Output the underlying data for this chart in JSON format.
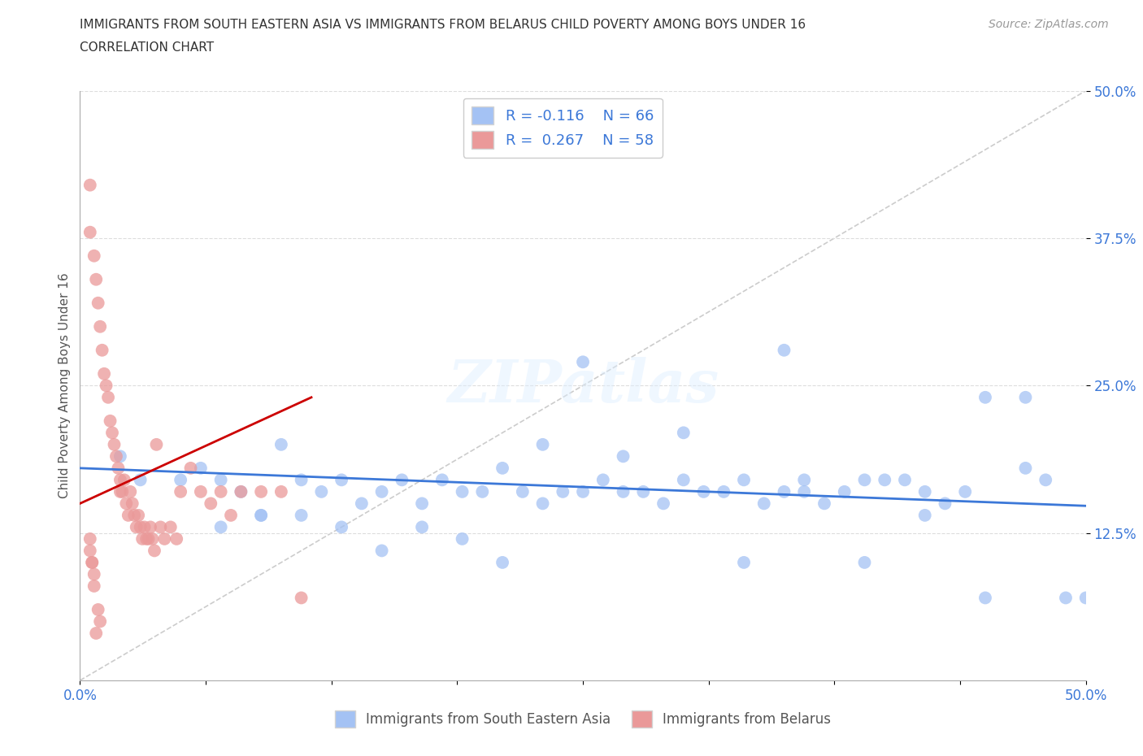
{
  "title_line1": "IMMIGRANTS FROM SOUTH EASTERN ASIA VS IMMIGRANTS FROM BELARUS CHILD POVERTY AMONG BOYS UNDER 16",
  "title_line2": "CORRELATION CHART",
  "source": "Source: ZipAtlas.com",
  "ylabel": "Child Poverty Among Boys Under 16",
  "xlim": [
    0.0,
    0.5
  ],
  "ylim": [
    0.0,
    0.5
  ],
  "xticks": [
    0.0,
    0.0625,
    0.125,
    0.1875,
    0.25,
    0.3125,
    0.375,
    0.4375,
    0.5
  ],
  "xticklabels": [
    "0.0%",
    "",
    "",
    "",
    "",
    "",
    "",
    "",
    "50.0%"
  ],
  "yticks": [
    0.125,
    0.25,
    0.375,
    0.5
  ],
  "yticklabels": [
    "12.5%",
    "25.0%",
    "37.5%",
    "50.0%"
  ],
  "blue_color": "#a4c2f4",
  "pink_color": "#ea9999",
  "blue_line_color": "#3c78d8",
  "pink_line_color": "#cc0000",
  "diagonal_color": "#cccccc",
  "blue_scatter_x": [
    0.02,
    0.03,
    0.05,
    0.06,
    0.07,
    0.08,
    0.09,
    0.1,
    0.11,
    0.12,
    0.13,
    0.14,
    0.15,
    0.16,
    0.17,
    0.18,
    0.19,
    0.2,
    0.21,
    0.22,
    0.23,
    0.24,
    0.25,
    0.26,
    0.27,
    0.28,
    0.29,
    0.3,
    0.31,
    0.32,
    0.33,
    0.34,
    0.35,
    0.36,
    0.37,
    0.38,
    0.39,
    0.4,
    0.41,
    0.42,
    0.43,
    0.44,
    0.45,
    0.47,
    0.48,
    0.49,
    0.07,
    0.09,
    0.11,
    0.13,
    0.15,
    0.17,
    0.19,
    0.21,
    0.23,
    0.27,
    0.3,
    0.33,
    0.36,
    0.39,
    0.42,
    0.45,
    0.47,
    0.5,
    0.25,
    0.35
  ],
  "blue_scatter_y": [
    0.19,
    0.17,
    0.17,
    0.18,
    0.17,
    0.16,
    0.14,
    0.2,
    0.17,
    0.16,
    0.17,
    0.15,
    0.16,
    0.17,
    0.15,
    0.17,
    0.16,
    0.16,
    0.18,
    0.16,
    0.15,
    0.16,
    0.16,
    0.17,
    0.19,
    0.16,
    0.15,
    0.17,
    0.16,
    0.16,
    0.17,
    0.15,
    0.16,
    0.17,
    0.15,
    0.16,
    0.17,
    0.17,
    0.17,
    0.16,
    0.15,
    0.16,
    0.24,
    0.24,
    0.17,
    0.07,
    0.13,
    0.14,
    0.14,
    0.13,
    0.11,
    0.13,
    0.12,
    0.1,
    0.2,
    0.16,
    0.21,
    0.1,
    0.16,
    0.1,
    0.14,
    0.07,
    0.18,
    0.07,
    0.27,
    0.28
  ],
  "pink_scatter_x": [
    0.005,
    0.005,
    0.005,
    0.006,
    0.007,
    0.007,
    0.008,
    0.009,
    0.009,
    0.01,
    0.01,
    0.011,
    0.012,
    0.013,
    0.014,
    0.015,
    0.016,
    0.017,
    0.018,
    0.019,
    0.02,
    0.02,
    0.021,
    0.022,
    0.023,
    0.024,
    0.025,
    0.026,
    0.027,
    0.028,
    0.029,
    0.03,
    0.031,
    0.032,
    0.033,
    0.034,
    0.035,
    0.036,
    0.037,
    0.038,
    0.04,
    0.042,
    0.045,
    0.048,
    0.05,
    0.055,
    0.06,
    0.065,
    0.07,
    0.075,
    0.08,
    0.09,
    0.1,
    0.11,
    0.005,
    0.006,
    0.007,
    0.008
  ],
  "pink_scatter_y": [
    0.42,
    0.38,
    0.12,
    0.1,
    0.36,
    0.08,
    0.34,
    0.32,
    0.06,
    0.3,
    0.05,
    0.28,
    0.26,
    0.25,
    0.24,
    0.22,
    0.21,
    0.2,
    0.19,
    0.18,
    0.17,
    0.16,
    0.16,
    0.17,
    0.15,
    0.14,
    0.16,
    0.15,
    0.14,
    0.13,
    0.14,
    0.13,
    0.12,
    0.13,
    0.12,
    0.12,
    0.13,
    0.12,
    0.11,
    0.2,
    0.13,
    0.12,
    0.13,
    0.12,
    0.16,
    0.18,
    0.16,
    0.15,
    0.16,
    0.14,
    0.16,
    0.16,
    0.16,
    0.07,
    0.11,
    0.1,
    0.09,
    0.04
  ],
  "blue_trend_x": [
    0.0,
    0.5
  ],
  "blue_trend_y": [
    0.18,
    0.148
  ],
  "pink_trend_x": [
    0.0,
    0.115
  ],
  "pink_trend_y": [
    0.15,
    0.24
  ],
  "background_color": "#ffffff",
  "grid_color": "#dddddd",
  "title_color": "#333333",
  "axis_label_color": "#555555",
  "tick_label_color": "#3c78d8"
}
